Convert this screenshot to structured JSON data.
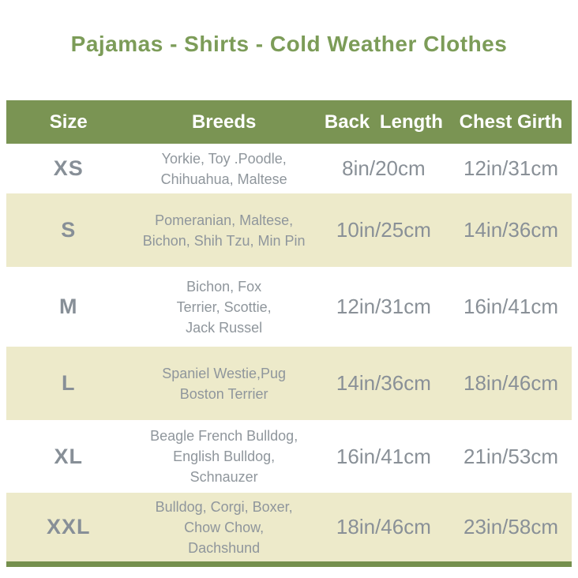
{
  "page": {
    "title": "Pajamas - Shirts - Cold Weather Clothes"
  },
  "colors": {
    "title_green": "#7c9c58",
    "header_bg": "#7a9453",
    "header_text": "#ffffff",
    "alt_row_bg": "#edeaca",
    "text_gray": "#899097",
    "size_gray": "#878f97",
    "bottom_border_green": "#75904d"
  },
  "table": {
    "headers": {
      "size": "Size",
      "breeds": "Breeds",
      "back_length": "Back Length",
      "chest_girth": "Chest Girth"
    },
    "rows": [
      {
        "size": "XS",
        "breeds": "Yorkie, Toy .Poodle,\nChihuahua, Maltese",
        "back_length": "8in/20cm",
        "chest_girth": "12in/31cm"
      },
      {
        "size": "S",
        "breeds": "Pomeranian, Maltese,\nBichon, Shih Tzu, Min Pin",
        "back_length": "10in/25cm",
        "chest_girth": "14in/36cm"
      },
      {
        "size": "M",
        "breeds": "Bichon, Fox\nTerrier, Scottie,\nJack Russel",
        "back_length": "12in/31cm",
        "chest_girth": "16in/41cm"
      },
      {
        "size": "L",
        "breeds": "Spaniel Westie,Pug\nBoston Terrier",
        "back_length": "14in/36cm",
        "chest_girth": "18in/46cm"
      },
      {
        "size": "XL",
        "breeds": "Beagle French Bulldog,\nEnglish Bulldog,\nSchnauzer",
        "back_length": "16in/41cm",
        "chest_girth": "21in/53cm"
      },
      {
        "size": "XXL",
        "breeds": "Bulldog, Corgi, Boxer,\nChow Chow,\nDachshund",
        "back_length": "18in/46cm",
        "chest_girth": "23in/58cm"
      }
    ]
  },
  "chart_data": {
    "type": "table",
    "title": "Pajamas - Shirts - Cold Weather Clothes",
    "columns": [
      "Size",
      "Breeds",
      "Back Length",
      "Chest Girth"
    ],
    "rows": [
      [
        "XS",
        "Yorkie, Toy .Poodle, Chihuahua, Maltese",
        "8in/20cm",
        "12in/31cm"
      ],
      [
        "S",
        "Pomeranian, Maltese, Bichon, Shih Tzu, Min Pin",
        "10in/25cm",
        "14in/36cm"
      ],
      [
        "M",
        "Bichon, Fox Terrier, Scottie, Jack Russel",
        "12in/31cm",
        "16in/41cm"
      ],
      [
        "L",
        "Spaniel Westie,Pug Boston Terrier",
        "14in/36cm",
        "18in/46cm"
      ],
      [
        "XL",
        "Beagle French Bulldog, English Bulldog, Schnauzer",
        "16in/41cm",
        "21in/53cm"
      ],
      [
        "XXL",
        "Bulldog, Corgi, Boxer, Chow Chow, Dachshund",
        "18in/46cm",
        "23in/58cm"
      ]
    ]
  }
}
